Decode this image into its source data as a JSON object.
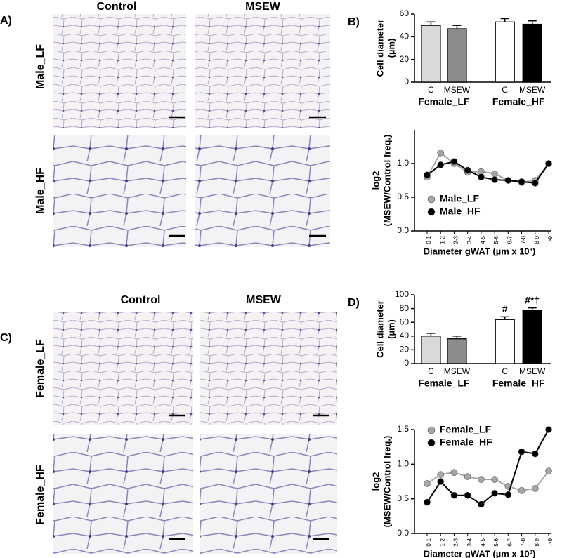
{
  "panels": {
    "a": {
      "label": "A)",
      "columns": [
        "Control",
        "MSEW"
      ],
      "rows": [
        "Male_LF",
        "Male_HF"
      ]
    },
    "c": {
      "label": "C)",
      "columns": [
        "Control",
        "MSEW"
      ],
      "rows": [
        "Female_LF",
        "Female_HF"
      ]
    }
  },
  "chart_data": [
    {
      "type": "bar",
      "panel_label": "B)",
      "ylabel": [
        "Cell diameter",
        "(µm)"
      ],
      "categories": [
        "C",
        "MSEW",
        "C",
        "MSEW"
      ],
      "group_labels": [
        "Female_LF",
        "Female_HF"
      ],
      "values": [
        50,
        47,
        53,
        51
      ],
      "errors": [
        3,
        3,
        3,
        3
      ],
      "colors": [
        "#d9d9d9",
        "#8c8c8c",
        "#ffffff",
        "#000000"
      ],
      "ylim": [
        0,
        60
      ],
      "yticks": [
        0,
        20,
        40,
        60
      ]
    },
    {
      "type": "line",
      "ylabel": [
        "log2",
        "(MSEW/Control freq.)"
      ],
      "xlabel": "Diameter gWAT (µm x 10³)",
      "categories": [
        "0-1",
        "1-2",
        "2-3",
        "3-4",
        "4-5",
        "5-6",
        "6-7",
        "7-8",
        "8-9",
        ">9"
      ],
      "series": [
        {
          "name": "Male_LF",
          "color": "#a6a6a6",
          "values": [
            0.8,
            1.16,
            1.0,
            0.87,
            0.88,
            0.85,
            0.75,
            0.72,
            0.75,
            1.0
          ]
        },
        {
          "name": "Male_HF",
          "color": "#000000",
          "values": [
            0.83,
            0.98,
            1.03,
            0.9,
            0.8,
            0.76,
            0.75,
            0.73,
            0.71,
            1.0
          ]
        }
      ],
      "ylim": [
        0,
        1.5
      ],
      "yticks": [
        {
          "value": 0,
          "label": "0.0"
        },
        {
          "value": 0.5,
          "label": "0.5"
        },
        {
          "value": 1,
          "label": "1.0"
        }
      ],
      "legend": "lower left"
    },
    {
      "type": "bar",
      "panel_label": "D)",
      "ylabel": [
        "Cell diameter",
        "(µm)"
      ],
      "categories": [
        "C",
        "MSEW",
        "C",
        "MSEW"
      ],
      "group_labels": [
        "Female_LF",
        "Female_HF"
      ],
      "values": [
        40,
        36,
        64,
        77
      ],
      "errors": [
        4,
        4,
        4,
        4
      ],
      "colors": [
        "#d9d9d9",
        "#8c8c8c",
        "#ffffff",
        "#000000"
      ],
      "annotations": [
        {
          "index": 2,
          "text": "#"
        },
        {
          "index": 3,
          "text": "#*†"
        }
      ],
      "ylim": [
        0,
        100
      ],
      "yticks": [
        0,
        20,
        40,
        60,
        80,
        100
      ]
    },
    {
      "type": "line",
      "ylabel": [
        "log2",
        "(MSEW/Control freq.)"
      ],
      "xlabel": "Diameter gWAT (µm x 10³)",
      "categories": [
        "0-1",
        "1-2",
        "2-3",
        "3-4",
        "4-5",
        "5-6",
        "6-7",
        "7-8",
        "8-9",
        ">9"
      ],
      "series": [
        {
          "name": "Female_LF",
          "color": "#a6a6a6",
          "values": [
            0.72,
            0.85,
            0.88,
            0.82,
            0.78,
            0.78,
            0.68,
            0.62,
            0.65,
            0.9
          ]
        },
        {
          "name": "Female_HF",
          "color": "#000000",
          "values": [
            0.45,
            0.75,
            0.55,
            0.55,
            0.42,
            0.58,
            0.56,
            1.18,
            1.15,
            1.5
          ]
        }
      ],
      "ylim": [
        0,
        1.5
      ],
      "yticks": [
        {
          "value": 0,
          "label": "0.0"
        },
        {
          "value": 0.5,
          "label": "0.5"
        },
        {
          "value": 1,
          "label": "1.0"
        },
        {
          "value": 1.5,
          "label": "1.5"
        }
      ],
      "legend": "upper left"
    }
  ]
}
